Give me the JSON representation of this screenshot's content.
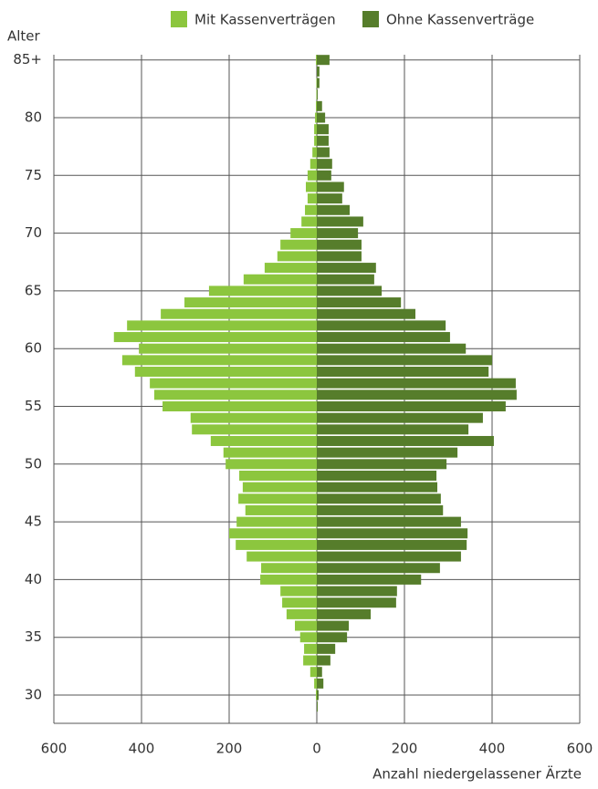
{
  "chart_data": {
    "type": "pyramid",
    "y_axis_label": "Alter",
    "x_axis_label": "Anzahl niedergelassener Ärzte",
    "categories": [
      null,
      "30",
      null,
      null,
      null,
      null,
      "35",
      null,
      null,
      null,
      null,
      "40",
      null,
      null,
      null,
      null,
      "45",
      null,
      null,
      null,
      null,
      "50",
      null,
      null,
      null,
      null,
      "55",
      null,
      null,
      null,
      null,
      "60",
      null,
      null,
      null,
      null,
      "65",
      null,
      null,
      null,
      null,
      "70",
      null,
      null,
      null,
      null,
      "75",
      null,
      null,
      null,
      null,
      "80",
      null,
      null,
      null,
      null,
      "85+"
    ],
    "series": [
      {
        "name": "Mit Kassenverträgen",
        "color": "#8cc63e",
        "values": [
          0,
          -2,
          -6,
          -15,
          -31,
          -29,
          -38,
          -50,
          -69,
          -79,
          -83,
          -129,
          -127,
          -160,
          -185,
          -200,
          -183,
          -163,
          -179,
          -169,
          -177,
          -208,
          -213,
          -242,
          -285,
          -288,
          -352,
          -371,
          -381,
          -415,
          -444,
          -406,
          -463,
          -433,
          -356,
          -302,
          -246,
          -167,
          -119,
          -90,
          -83,
          -60,
          -35,
          -27,
          -21,
          -25,
          -21,
          -15,
          -10,
          -6,
          -6,
          -4,
          -2,
          -1,
          -1,
          0,
          -2
        ]
      },
      {
        "name": "Ohne Kassenverträge",
        "color": "#567d2b",
        "values": [
          2,
          4,
          15,
          12,
          31,
          42,
          69,
          73,
          123,
          181,
          183,
          238,
          281,
          329,
          342,
          344,
          329,
          288,
          283,
          275,
          273,
          296,
          321,
          404,
          346,
          379,
          431,
          456,
          454,
          392,
          400,
          340,
          304,
          294,
          225,
          192,
          148,
          131,
          135,
          102,
          102,
          94,
          106,
          75,
          58,
          62,
          33,
          35,
          29,
          27,
          27,
          19,
          12,
          2,
          6,
          6,
          29
        ]
      }
    ],
    "xlim": [
      -600,
      600
    ],
    "xticks": [
      {
        "value": -600,
        "label": "600"
      },
      {
        "value": -400,
        "label": "400"
      },
      {
        "value": -200,
        "label": "200"
      },
      0,
      200,
      400,
      600
    ],
    "grid": true,
    "legend": "top-right"
  }
}
